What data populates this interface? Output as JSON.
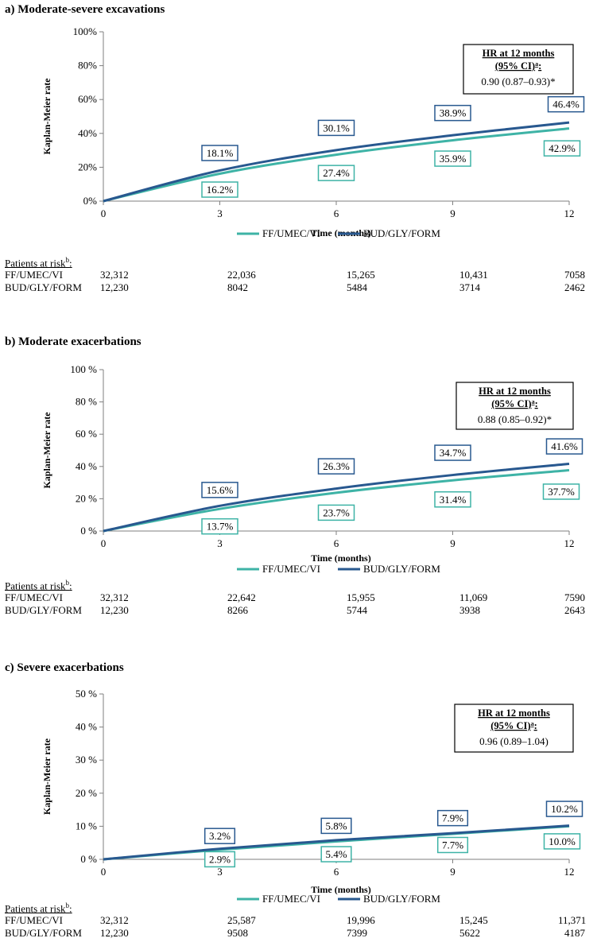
{
  "colors": {
    "ff": "#3eb3a6",
    "bud": "#28588f",
    "axis": "#7f7f7f",
    "text": "#000000"
  },
  "chart_data": [
    {
      "type": "line",
      "title": "a) Moderate-severe excavations",
      "xlabel": "Time (months)",
      "ylabel": "Kaplan-Meier rate",
      "x_ticks": [
        "0",
        "3",
        "6",
        "9",
        "12"
      ],
      "y_ticks": [
        "0%",
        "20%",
        "40%",
        "60%",
        "80%",
        "100%"
      ],
      "ylim": [
        0,
        100
      ],
      "xlim": [
        0,
        12
      ],
      "series": [
        {
          "name": "FF/UMEC/VI",
          "x": [
            0,
            3,
            6,
            9,
            12
          ],
          "values": [
            0,
            16.2,
            27.4,
            35.9,
            42.9
          ],
          "labels": [
            "16.2%",
            "27.4%",
            "35.9%",
            "42.9%"
          ]
        },
        {
          "name": "BUD/GLY/FORM",
          "x": [
            0,
            3,
            6,
            9,
            12
          ],
          "values": [
            0,
            18.1,
            30.1,
            38.9,
            46.4
          ],
          "labels": [
            "18.1%",
            "30.1%",
            "38.9%",
            "46.4%"
          ]
        }
      ],
      "hr_box": {
        "title1": "HR at 12 months",
        "title2": "(95% CI)",
        "sup": "a",
        "colon": ":",
        "value": "0.90 (0.87–0.93)*"
      },
      "legend": {
        "ff": "FF/UMEC/VI",
        "bud": "BUD/GLY/FORM"
      },
      "risk_table": {
        "title": "Patients at risk",
        "sup": "b",
        "colon": ":",
        "rows": [
          {
            "label": "FF/UMEC/VI",
            "values": [
              "32,312",
              "22,036",
              "15,265",
              "10,431",
              "7058"
            ]
          },
          {
            "label": "BUD/GLY/FORM",
            "values": [
              "12,230",
              "8042",
              "5484",
              "3714",
              "2462"
            ]
          }
        ]
      }
    },
    {
      "type": "line",
      "title": "b) Moderate exacerbations",
      "xlabel": "Time (months)",
      "ylabel": "Kaplan-Meier rate",
      "x_ticks": [
        "0",
        "3",
        "6",
        "9",
        "12"
      ],
      "y_ticks": [
        "0 %",
        "20 %",
        "40 %",
        "60 %",
        "80 %",
        "100 %"
      ],
      "ylim": [
        0,
        100
      ],
      "xlim": [
        0,
        12
      ],
      "series": [
        {
          "name": "FF/UMEC/VI",
          "x": [
            0,
            3,
            6,
            9,
            12
          ],
          "values": [
            0,
            13.7,
            23.7,
            31.4,
            37.7
          ],
          "labels": [
            "13.7%",
            "23.7%",
            "31.4%",
            "37.7%"
          ]
        },
        {
          "name": "BUD/GLY/FORM",
          "x": [
            0,
            3,
            6,
            9,
            12
          ],
          "values": [
            0,
            15.6,
            26.3,
            34.7,
            41.6
          ],
          "labels": [
            "15.6%",
            "26.3%",
            "34.7%",
            "41.6%"
          ]
        }
      ],
      "hr_box": {
        "title1": "HR at 12 months",
        "title2": "(95% CI)",
        "sup": "a",
        "colon": ":",
        "value": "0.88 (0.85–0.92)*"
      },
      "legend": {
        "ff": "FF/UMEC/VI",
        "bud": "BUD/GLY/FORM"
      },
      "risk_table": {
        "title": "Patients at risk",
        "sup": "b",
        "colon": ":",
        "rows": [
          {
            "label": "FF/UMEC/VI",
            "values": [
              "32,312",
              "22,642",
              "15,955",
              "11,069",
              "7590"
            ]
          },
          {
            "label": "BUD/GLY/FORM",
            "values": [
              "12,230",
              "8266",
              "5744",
              "3938",
              "2643"
            ]
          }
        ]
      }
    },
    {
      "type": "line",
      "title": "c) Severe exacerbations",
      "xlabel": "Time (months)",
      "ylabel": "Kaplan-Meier rate",
      "x_ticks": [
        "0",
        "3",
        "6",
        "9",
        "12"
      ],
      "y_ticks": [
        "0 %",
        "10 %",
        "20 %",
        "30 %",
        "40 %",
        "50 %"
      ],
      "ylim": [
        0,
        50
      ],
      "xlim": [
        0,
        12
      ],
      "series": [
        {
          "name": "FF/UMEC/VI",
          "x": [
            0,
            3,
            6,
            9,
            12
          ],
          "values": [
            0,
            2.9,
            5.4,
            7.7,
            10.0
          ],
          "labels": [
            "2.9%",
            "5.4%",
            "7.7%",
            "10.0%"
          ]
        },
        {
          "name": "BUD/GLY/FORM",
          "x": [
            0,
            3,
            6,
            9,
            12
          ],
          "values": [
            0,
            3.2,
            5.8,
            7.9,
            10.2
          ],
          "labels": [
            "3.2%",
            "5.8%",
            "7.9%",
            "10.2%"
          ]
        }
      ],
      "hr_box": {
        "title1": "HR at 12 months",
        "title2": "(95% CI)",
        "sup": "a",
        "colon": ":",
        "value": "0.96 (0.89–1.04)"
      },
      "legend": {
        "ff": "FF/UMEC/VI",
        "bud": "BUD/GLY/FORM"
      },
      "risk_table": {
        "title": "Patients at risk",
        "sup": "b",
        "colon": ":",
        "rows": [
          {
            "label": "FF/UMEC/VI",
            "values": [
              "32,312",
              "25,587",
              "19,996",
              "15,245",
              "11,371"
            ]
          },
          {
            "label": "BUD/GLY/FORM",
            "values": [
              "12,230",
              "9508",
              "7399",
              "5622",
              "4187"
            ]
          }
        ]
      }
    }
  ]
}
